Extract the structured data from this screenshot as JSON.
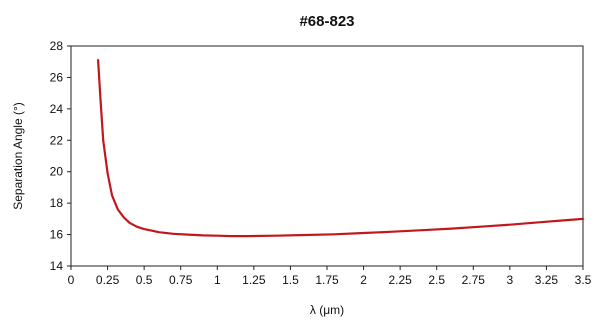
{
  "chart_data": {
    "type": "line",
    "title": "#68-823",
    "xlabel": "λ (μm)",
    "ylabel": "Separation Angle (°)",
    "xlim": [
      0,
      3.5
    ],
    "ylim": [
      14,
      28
    ],
    "x_ticks": [
      "0",
      "0.25",
      "0.5",
      "0.75",
      "1",
      "1.25",
      "1.5",
      "1.75",
      "2",
      "2.25",
      "2.5",
      "2.75",
      "3",
      "3.25",
      "3.5"
    ],
    "y_ticks": [
      "14",
      "16",
      "18",
      "20",
      "22",
      "24",
      "26",
      "28"
    ],
    "grid": false,
    "series": [
      {
        "color": "#c0181d",
        "x": [
          0.185,
          0.2,
          0.22,
          0.25,
          0.28,
          0.32,
          0.36,
          0.4,
          0.45,
          0.5,
          0.55,
          0.6,
          0.7,
          0.8,
          0.9,
          1.0,
          1.1,
          1.2,
          1.4,
          1.6,
          1.8,
          2.0,
          2.2,
          2.4,
          2.6,
          2.8,
          3.0,
          3.2,
          3.4,
          3.5
        ],
        "y": [
          27.1,
          24.8,
          22.0,
          19.9,
          18.5,
          17.6,
          17.1,
          16.75,
          16.5,
          16.35,
          16.25,
          16.15,
          16.05,
          16.0,
          15.95,
          15.93,
          15.9,
          15.9,
          15.93,
          15.97,
          16.02,
          16.1,
          16.18,
          16.28,
          16.38,
          16.5,
          16.63,
          16.78,
          16.93,
          17.0
        ]
      }
    ]
  }
}
